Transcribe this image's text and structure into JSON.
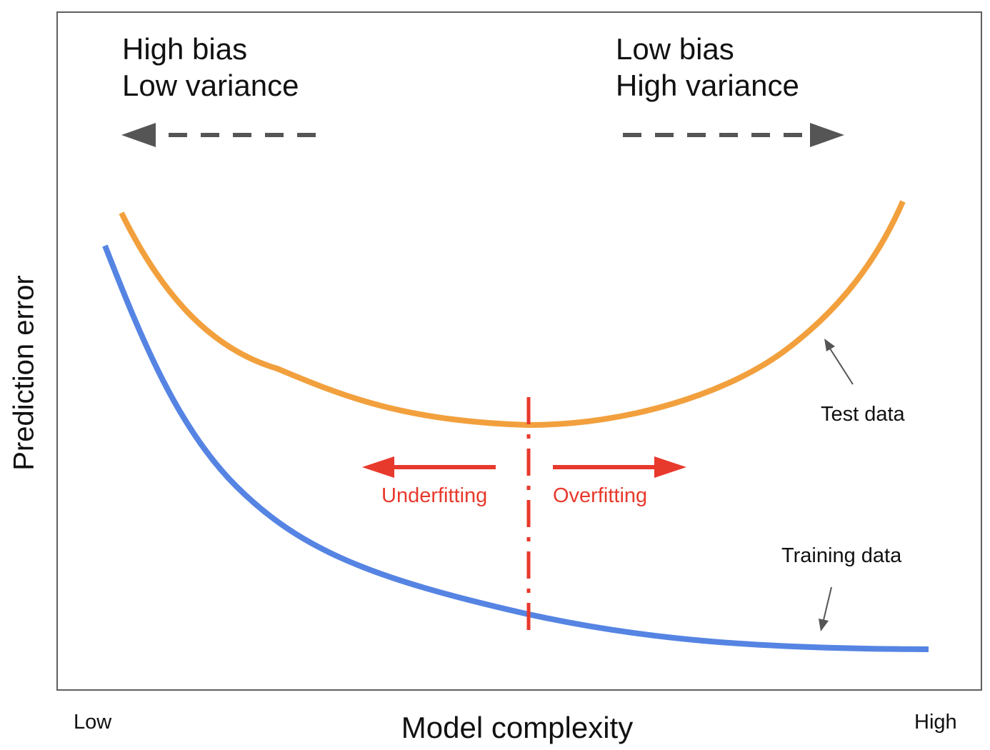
{
  "axes": {
    "y_label": "Prediction error",
    "x_label": "Model complexity",
    "x_low": "Low",
    "x_high": "High"
  },
  "regions": {
    "left": {
      "line1": "High bias",
      "line2": "Low variance"
    },
    "right": {
      "line1": "Low bias",
      "line2": "High variance"
    }
  },
  "fit": {
    "under": "Underfitting",
    "over": "Overfitting"
  },
  "curves": {
    "test": "Test data",
    "training": "Training data"
  },
  "colors": {
    "test_curve": "#f2a03d",
    "training_curve": "#5584e3",
    "fit_marker": "#e8392d",
    "direction_arrow": "#555555",
    "frame": "#5f5f5f"
  }
}
